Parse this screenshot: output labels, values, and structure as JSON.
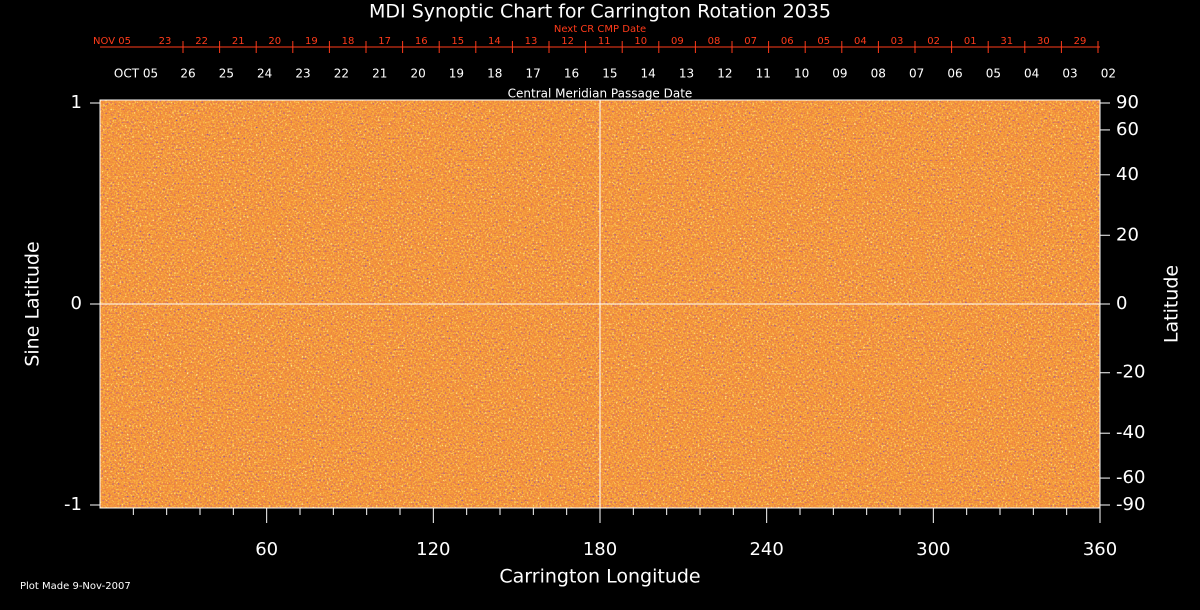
{
  "chart_data": {
    "type": "synoptic",
    "title": "MDI Synoptic Chart for Carrington Rotation 2035",
    "x_label": "Carrington Longitude",
    "y_label": "Sine Latitude",
    "y2_label": "Latitude",
    "xlim": [
      0,
      360
    ],
    "xticks": [
      60,
      120,
      180,
      240,
      300,
      360
    ],
    "ylim": [
      -1,
      1
    ],
    "yticks": [
      -1,
      0,
      1
    ],
    "y2lim": [
      -90,
      90
    ],
    "y2scale": "sine",
    "y2ticks": [
      90,
      60,
      40,
      20,
      0,
      -20,
      -40,
      -60,
      -90
    ],
    "top_axis": {
      "label": "Next CR CMP Date",
      "color": "#ff3b1a",
      "categories": [
        "NOV 05",
        "23",
        "22",
        "21",
        "20",
        "19",
        "18",
        "17",
        "16",
        "15",
        "14",
        "13",
        "12",
        "11",
        "10",
        "09",
        "08",
        "07",
        "06",
        "05",
        "04",
        "03",
        "02",
        "01",
        "31",
        "30",
        "29"
      ]
    },
    "top_axis2": {
      "label": "Central Meridian Passage Date",
      "categories": [
        "OCT 05",
        "26",
        "25",
        "24",
        "23",
        "22",
        "21",
        "20",
        "19",
        "18",
        "17",
        "16",
        "15",
        "14",
        "13",
        "12",
        "11",
        "10",
        "09",
        "08",
        "07",
        "06",
        "05",
        "04",
        "03",
        "02"
      ]
    },
    "footnote": "Plot Made  9-Nov-2007"
  }
}
